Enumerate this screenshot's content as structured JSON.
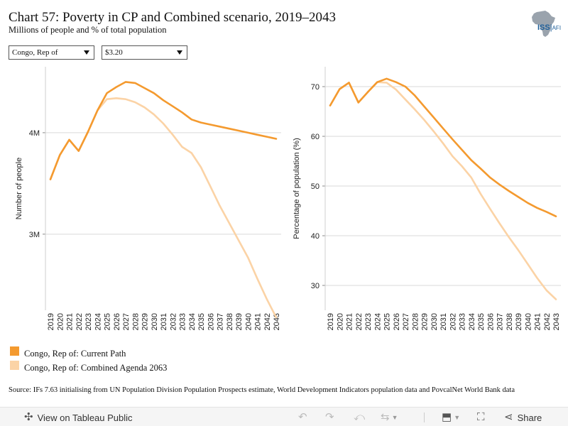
{
  "header": {
    "title": "Chart 57: Poverty in CP and Combined scenario, 2019–2043",
    "subtitle": "Millions of people and % of total population"
  },
  "logo": {
    "text": "ISS",
    "separator": "|",
    "suffix": "AFI"
  },
  "filters": {
    "country": "Congo, Rep of",
    "threshold": "$3.20"
  },
  "colors": {
    "current_path": "#f49a2f",
    "combined": "#fbd3a6",
    "gridline": "#d9d9d9"
  },
  "chart_data": [
    {
      "type": "line",
      "title": "",
      "xlabel": "",
      "ylabel": "Number of people",
      "ytick_labels": [
        "3M",
        "4M"
      ],
      "ytick_values": [
        3000000,
        4000000
      ],
      "ylim": [
        2250000,
        4650000
      ],
      "x": [
        "2019",
        "2020",
        "2021",
        "2022",
        "2023",
        "2024",
        "2025",
        "2026",
        "2027",
        "2028",
        "2029",
        "2030",
        "2031",
        "2032",
        "2033",
        "2034",
        "2035",
        "2036",
        "2037",
        "2038",
        "2039",
        "2040",
        "2041",
        "2042",
        "2043"
      ],
      "series": [
        {
          "name": "Congo, Rep of: Current Path",
          "values": [
            3540000,
            3780000,
            3930000,
            3820000,
            4010000,
            4220000,
            4390000,
            4450000,
            4500000,
            4490000,
            4440000,
            4390000,
            4320000,
            4260000,
            4200000,
            4130000,
            4100000,
            4080000,
            4060000,
            4040000,
            4020000,
            4000000,
            3980000,
            3960000,
            3940000
          ]
        },
        {
          "name": "Congo, Rep of: Combined Agenda 2063",
          "values": [
            3540000,
            3780000,
            3930000,
            3820000,
            4010000,
            4220000,
            4330000,
            4340000,
            4330000,
            4300000,
            4250000,
            4180000,
            4090000,
            3980000,
            3860000,
            3800000,
            3660000,
            3470000,
            3280000,
            3110000,
            2940000,
            2770000,
            2560000,
            2360000,
            2180000
          ]
        }
      ]
    },
    {
      "type": "line",
      "title": "",
      "xlabel": "",
      "ylabel": "Percentage of population (%)",
      "ytick_labels": [
        "30",
        "40",
        "50",
        "60",
        "70"
      ],
      "ytick_values": [
        30,
        40,
        50,
        60,
        70
      ],
      "ylim": [
        25,
        74
      ],
      "x": [
        "2019",
        "2020",
        "2021",
        "2022",
        "2023",
        "2024",
        "2025",
        "2026",
        "2027",
        "2028",
        "2029",
        "2030",
        "2031",
        "2032",
        "2033",
        "2034",
        "2035",
        "2036",
        "2037",
        "2038",
        "2039",
        "2040",
        "2041",
        "2042",
        "2043"
      ],
      "series": [
        {
          "name": "Congo, Rep of: Current Path",
          "values": [
            66.2,
            69.5,
            70.8,
            66.8,
            68.9,
            70.9,
            71.6,
            70.9,
            70.0,
            68.2,
            66.0,
            63.8,
            61.6,
            59.4,
            57.3,
            55.2,
            53.5,
            51.7,
            50.3,
            49.0,
            47.8,
            46.6,
            45.6,
            44.8,
            43.9
          ]
        },
        {
          "name": "Congo, Rep of: Combined Agenda 2063",
          "values": [
            66.2,
            69.5,
            70.8,
            66.8,
            68.9,
            70.9,
            70.8,
            69.4,
            67.4,
            65.4,
            63.3,
            61.0,
            58.6,
            56.0,
            54.0,
            51.7,
            48.4,
            45.4,
            42.5,
            39.7,
            37.1,
            34.3,
            31.5,
            29.0,
            27.2
          ]
        }
      ]
    }
  ],
  "legend": {
    "items": [
      {
        "label": "Congo, Rep of: Current Path",
        "color": "#f49a2f"
      },
      {
        "label": "Congo, Rep of: Combined Agenda 2063",
        "color": "#fbd3a6"
      }
    ]
  },
  "source": "Source: IFs 7.63 initialising from UN Population Division Population Prospects estimate, World Development Indicators population data and PovcalNet World Bank data",
  "toolbar": {
    "view_label": "View on Tableau Public",
    "share_label": "Share",
    "icons": [
      "tableau-icon",
      "undo-icon",
      "redo-icon",
      "revert-icon",
      "refresh-icon",
      "download-icon",
      "fullscreen-icon",
      "share-icon"
    ]
  }
}
